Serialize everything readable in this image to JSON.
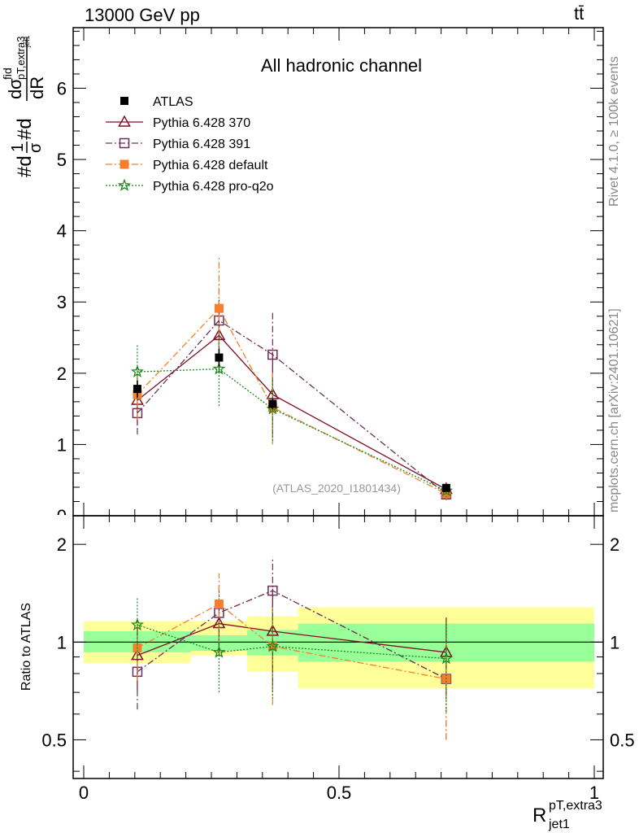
{
  "header": {
    "energy_label": "13000 GeV pp",
    "process_label": "tt̄"
  },
  "side_labels": {
    "rivet": "Rivet 4.1.0, ≥ 100k events",
    "mcplots": "mcplots.cern.ch [arXiv:2401.10621]"
  },
  "chart_data": {
    "type": "scatter",
    "title": "All hadronic channel",
    "watermark": "(ATLAS_2020_I1801434)",
    "xlabel": {
      "base": "R",
      "sup": "pT,extra3",
      "sub": "jet1"
    },
    "ylabel": {
      "prefix": "#d",
      "one": "1",
      "sigma": "σ",
      "mid": "#d",
      "frac_num_d": "d",
      "frac_num_sigma": "σ",
      "frac_num_sup": "fid",
      "frac_num_sub": "pT,extra3",
      "frac_num_subsub": "jet1",
      "frac_den": "dR"
    },
    "ratio_ylabel": "Ratio to ATLAS",
    "xlim": [
      0,
      1
    ],
    "main_ylim": [
      0,
      6.85
    ],
    "ratio_ylim": [
      0.38,
      2.45
    ],
    "main_yticks": [
      "0",
      "1",
      "2",
      "3",
      "4",
      "5",
      "6"
    ],
    "ratio_yticks": [
      "0.5",
      "1",
      "2"
    ],
    "xticks": [
      "0",
      "0.5",
      "1"
    ],
    "bins": [
      {
        "xlo": 0.0,
        "xhi": 0.21
      },
      {
        "xlo": 0.21,
        "xhi": 0.32
      },
      {
        "xlo": 0.32,
        "xhi": 0.42
      },
      {
        "xlo": 0.42,
        "xhi": 1.0
      }
    ],
    "x": [
      0.105,
      0.265,
      0.37,
      0.71
    ],
    "data": {
      "name": "ATLAS",
      "values": [
        1.78,
        2.22,
        1.57,
        0.39
      ],
      "errors": [
        0.12,
        0.12,
        0.08,
        0.02
      ],
      "band_stat": [
        [
          0.93,
          1.08
        ],
        [
          0.94,
          1.05
        ],
        [
          0.91,
          1.09
        ],
        [
          0.87,
          1.14
        ]
      ],
      "band_total": [
        [
          0.86,
          1.16
        ],
        [
          0.91,
          1.16
        ],
        [
          0.81,
          1.2
        ],
        [
          0.72,
          1.28
        ]
      ]
    },
    "series": [
      {
        "name": "Pythia 6.428 370",
        "color": "#7f0f24",
        "marker": "triangle-open",
        "dash": "solid",
        "values": [
          1.62,
          2.53,
          1.7,
          0.37
        ],
        "errors": [
          0.35,
          0.5,
          0.6,
          0.1
        ],
        "ratio": [
          0.91,
          1.14,
          1.08,
          0.93
        ],
        "ratio_err": [
          0.2,
          0.22,
          0.38,
          0.26
        ]
      },
      {
        "name": "Pythia 6.428 391",
        "color": "#6b3058",
        "marker": "square-open",
        "dash": "dashdot",
        "values": [
          1.44,
          2.74,
          2.26,
          0.3
        ],
        "errors": [
          0.3,
          0.55,
          0.6,
          0.08
        ],
        "ratio": [
          0.81,
          1.23,
          1.44,
          0.77
        ],
        "ratio_err": [
          0.19,
          0.25,
          0.39,
          0.27
        ]
      },
      {
        "name": "Pythia 6.428 default",
        "color": "#f57f2a",
        "marker": "square-filled",
        "dash": "dashdot",
        "values": [
          1.7,
          2.91,
          1.52,
          0.31
        ],
        "errors": [
          0.35,
          0.72,
          0.52,
          0.08
        ],
        "ratio": [
          0.96,
          1.31,
          0.97,
          0.77
        ],
        "ratio_err": [
          0.2,
          0.32,
          0.33,
          0.27
        ]
      },
      {
        "name": "Pythia 6.428 pro-q2o",
        "color": "#1a8a1a",
        "marker": "star",
        "dash": "dotted",
        "values": [
          2.02,
          2.06,
          1.5,
          0.35
        ],
        "errors": [
          0.38,
          0.52,
          0.45,
          0.09
        ],
        "ratio": [
          1.13,
          0.93,
          0.97,
          0.89
        ],
        "ratio_err": [
          0.24,
          0.23,
          0.3,
          0.28
        ]
      }
    ]
  }
}
